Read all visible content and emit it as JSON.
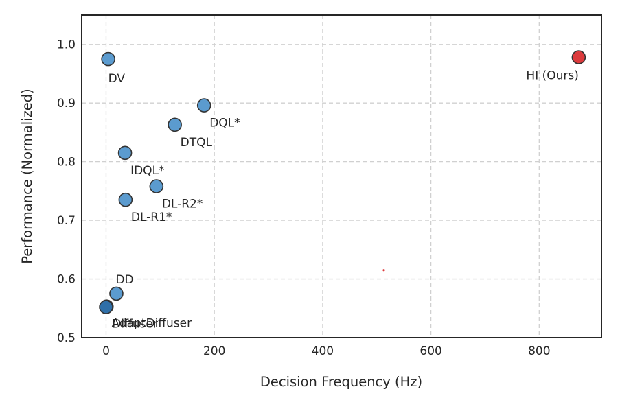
{
  "chart_data": {
    "type": "scatter",
    "title": "",
    "xlabel": "Decision Frequency (Hz)",
    "ylabel": "Performance (Normalized)",
    "xlim": [
      -45,
      915
    ],
    "ylim": [
      0.5,
      1.05
    ],
    "xticks": [
      0,
      200,
      400,
      600,
      800
    ],
    "yticks": [
      0.5,
      0.6,
      0.7,
      0.8,
      0.9,
      1.0
    ],
    "ytick_labels": [
      "0.5",
      "0.6",
      "0.7",
      "0.8",
      "0.9",
      "1.0"
    ],
    "grid": true,
    "points": [
      {
        "label": "DV",
        "x": 4,
        "y": 0.975,
        "color": "#5b9bcf",
        "label_pos": "below"
      },
      {
        "label": "DQL*",
        "x": 181,
        "y": 0.896,
        "color": "#5b9bcf",
        "label_pos": "below-right"
      },
      {
        "label": "DTQL",
        "x": 127,
        "y": 0.863,
        "color": "#5b9bcf",
        "label_pos": "below-right"
      },
      {
        "label": "IDQL*",
        "x": 35,
        "y": 0.815,
        "color": "#5b9bcf",
        "label_pos": "below-right"
      },
      {
        "label": "DL-R2*",
        "x": 93,
        "y": 0.758,
        "color": "#5b9bcf",
        "label_pos": "below-right"
      },
      {
        "label": "DL-R1*",
        "x": 36,
        "y": 0.735,
        "color": "#5b9bcf",
        "label_pos": "below-right"
      },
      {
        "label": "DD",
        "x": 19,
        "y": 0.575,
        "color": "#5b9bcf",
        "label_pos": "above-right"
      },
      {
        "label": "Diffuser",
        "x": 1,
        "y": 0.553,
        "color": "#3d86c4",
        "label_pos": "below-right"
      },
      {
        "label": "AdaptDiffuser",
        "x": 0,
        "y": 0.552,
        "color": "#2f6fa8",
        "label_pos": "far-below-right"
      },
      {
        "label": "HI (Ours)",
        "x": 873,
        "y": 0.978,
        "color": "#dc3a3c",
        "label_pos": "below-left"
      }
    ],
    "annotations": [
      {
        "type": "dot",
        "x": 513,
        "y": 0.615,
        "color": "#dc3a3c"
      }
    ]
  }
}
